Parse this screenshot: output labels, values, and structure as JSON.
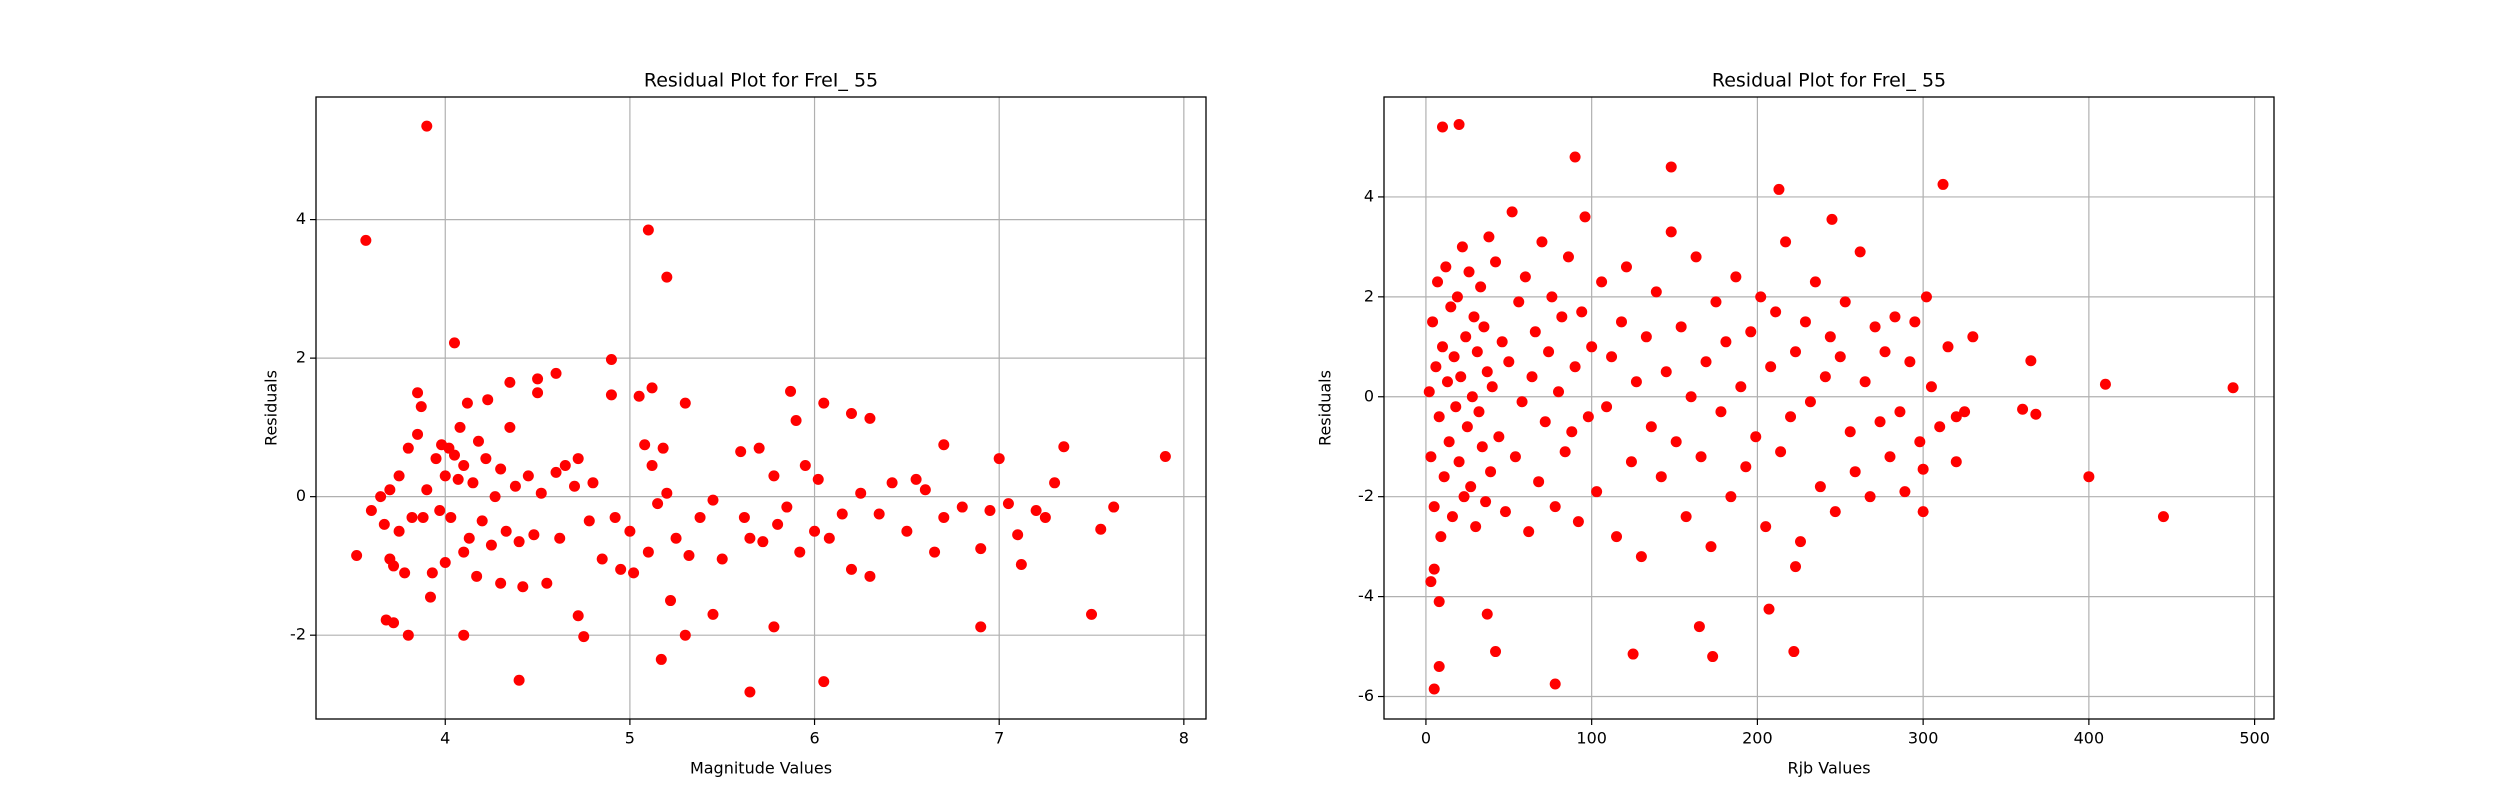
{
  "chart_data": [
    {
      "type": "scatter",
      "title": "Residual Plot for FreI_ 55",
      "x_label": "Magnitude Values",
      "y_label": "Residuals",
      "color": "#ff0000",
      "grid": true,
      "xlim": [
        3.3,
        8.12
      ],
      "ylim": [
        -3.21,
        5.77
      ],
      "xticks": [
        4,
        5,
        6,
        7,
        8
      ],
      "yticks": [
        -2,
        0,
        2,
        4
      ],
      "x": [
        3.52,
        3.57,
        3.9,
        4.05,
        5.1,
        5.2,
        4.9,
        3.8,
        4.1,
        4.4,
        5.65,
        6.05,
        5.17,
        7.9,
        7.5,
        6.9,
        7.35,
        7.55,
        7.62,
        7.12,
        7.0,
        4.72,
        4.75,
        5.45,
        5.3,
        5.78,
        3.68,
        3.72,
        3.85,
        4.6,
        4.5,
        4.35,
        5.12,
        5.87,
        6.05,
        6.2,
        6.3,
        6.7,
        3.6,
        3.65,
        3.67,
        3.7,
        3.7,
        3.72,
        3.75,
        3.75,
        3.78,
        3.8,
        3.82,
        3.85,
        3.87,
        3.88,
        3.9,
        3.92,
        3.93,
        3.95,
        3.97,
        3.98,
        4.0,
        4.0,
        4.02,
        4.03,
        4.05,
        4.07,
        4.08,
        4.1,
        4.1,
        4.12,
        4.13,
        4.15,
        4.17,
        4.18,
        4.2,
        4.22,
        4.23,
        4.25,
        4.27,
        4.3,
        4.3,
        4.33,
        4.35,
        4.38,
        4.4,
        4.42,
        4.45,
        4.48,
        4.5,
        4.52,
        4.55,
        4.6,
        4.62,
        4.65,
        4.7,
        4.72,
        4.78,
        4.8,
        4.85,
        4.9,
        4.92,
        4.95,
        5.0,
        5.02,
        5.05,
        5.08,
        5.1,
        5.12,
        5.15,
        5.18,
        5.2,
        5.22,
        5.25,
        5.3,
        5.32,
        5.38,
        5.45,
        5.5,
        5.6,
        5.62,
        5.65,
        5.7,
        5.72,
        5.78,
        5.8,
        5.85,
        5.9,
        5.92,
        5.95,
        6.0,
        6.02,
        6.08,
        6.15,
        6.2,
        6.25,
        6.3,
        6.35,
        6.42,
        6.5,
        6.55,
        6.6,
        6.65,
        6.7,
        6.8,
        6.9,
        6.95,
        7.05,
        7.1,
        7.2,
        7.25,
        7.3
      ],
      "values": [
        -0.85,
        3.7,
        5.35,
        2.22,
        3.85,
        3.17,
        1.98,
        -2.0,
        -2.0,
        -2.65,
        -2.82,
        -2.67,
        -2.35,
        0.58,
        -1.7,
        -1.88,
        0.72,
        -0.47,
        -0.15,
        -0.98,
        0.55,
        -1.72,
        -2.02,
        -1.7,
        -2.0,
        -1.88,
        -1.78,
        -1.82,
        1.5,
        1.78,
        1.7,
        1.65,
        1.57,
        1.52,
        1.35,
        1.2,
        1.13,
        0.75,
        -0.2,
        0.0,
        -0.4,
        0.1,
        -0.9,
        -1.0,
        -0.5,
        0.3,
        -1.1,
        0.7,
        -0.3,
        0.9,
        1.3,
        -0.3,
        0.1,
        -1.45,
        -1.1,
        0.55,
        -0.2,
        0.75,
        0.3,
        -0.95,
        0.7,
        -0.3,
        0.6,
        0.25,
        1.0,
        -0.8,
        0.45,
        1.35,
        -0.6,
        0.2,
        -1.15,
        0.8,
        -0.35,
        0.55,
        1.4,
        -0.7,
        0.0,
        -1.25,
        0.4,
        -0.5,
        1.0,
        0.15,
        -0.65,
        -1.3,
        0.3,
        -0.55,
        1.5,
        0.05,
        -1.25,
        0.35,
        -0.6,
        0.45,
        0.15,
        0.55,
        -0.35,
        0.2,
        -0.9,
        1.47,
        -0.3,
        -1.05,
        -0.5,
        -1.1,
        1.45,
        0.75,
        -0.8,
        0.45,
        -0.1,
        0.7,
        0.05,
        -1.5,
        -0.6,
        1.35,
        -0.85,
        -0.3,
        -0.05,
        -0.9,
        0.65,
        -0.3,
        -0.6,
        0.7,
        -0.65,
        0.3,
        -0.4,
        -0.15,
        1.1,
        -0.8,
        0.45,
        -0.5,
        0.25,
        -0.6,
        -0.25,
        -1.05,
        0.05,
        -1.15,
        -0.25,
        0.2,
        -0.5,
        0.25,
        0.1,
        -0.8,
        -0.3,
        -0.15,
        -0.75,
        -0.2,
        -0.1,
        -0.55,
        -0.2,
        -0.3,
        0.2
      ]
    },
    {
      "type": "scatter",
      "title": "Residual Plot for FreI_ 55",
      "x_label": "Rjb Values",
      "y_label": "Residuals",
      "color": "#ff0000",
      "grid": true,
      "xlim": [
        -25.3,
        511.7
      ],
      "ylim": [
        -6.45,
        6.0
      ],
      "xticks": [
        0,
        100,
        200,
        300,
        400,
        500
      ],
      "yticks": [
        -6,
        -4,
        -2,
        0,
        2,
        4
      ],
      "x": [
        10,
        20,
        90,
        148,
        312,
        213,
        245,
        487,
        410,
        400,
        445,
        365,
        368,
        360,
        5,
        8,
        78,
        125,
        173,
        222,
        42,
        207,
        165,
        37,
        8,
        3,
        5,
        223,
        330,
        325,
        320,
        300,
        302,
        300,
        2,
        3,
        4,
        5,
        6,
        7,
        8,
        9,
        10,
        11,
        12,
        13,
        14,
        15,
        16,
        17,
        18,
        19,
        20,
        21,
        22,
        23,
        24,
        25,
        26,
        27,
        28,
        29,
        30,
        31,
        32,
        33,
        34,
        35,
        36,
        37,
        38,
        39,
        40,
        42,
        44,
        46,
        48,
        50,
        52,
        54,
        56,
        58,
        60,
        62,
        64,
        66,
        68,
        70,
        72,
        74,
        76,
        78,
        80,
        82,
        84,
        86,
        88,
        90,
        92,
        94,
        96,
        98,
        100,
        103,
        106,
        109,
        112,
        115,
        118,
        121,
        124,
        127,
        130,
        133,
        136,
        139,
        142,
        145,
        148,
        151,
        154,
        157,
        160,
        163,
        166,
        169,
        172,
        175,
        178,
        181,
        184,
        187,
        190,
        193,
        196,
        199,
        202,
        205,
        208,
        211,
        214,
        217,
        220,
        223,
        226,
        229,
        232,
        235,
        238,
        241,
        244,
        247,
        250,
        253,
        256,
        259,
        262,
        265,
        268,
        271,
        274,
        277,
        280,
        283,
        286,
        289,
        292,
        295,
        298,
        305,
        310,
        315,
        320
      ],
      "values": [
        5.4,
        5.45,
        4.8,
        4.6,
        4.25,
        4.15,
        3.55,
        0.18,
        0.25,
        -1.6,
        -2.4,
        0.72,
        -0.35,
        -0.25,
        -5.85,
        -5.4,
        -5.75,
        -5.15,
        -5.2,
        -5.1,
        -5.1,
        -4.25,
        -4.6,
        -4.35,
        -4.1,
        -3.7,
        -3.45,
        -3.4,
        1.2,
        -0.3,
        -1.3,
        -2.3,
        2.0,
        -1.45,
        0.1,
        -1.2,
        1.5,
        -2.2,
        0.6,
        2.3,
        -0.4,
        -2.8,
        1.0,
        -1.6,
        2.6,
        0.3,
        -0.9,
        1.8,
        -2.4,
        0.8,
        -0.2,
        2.0,
        -1.3,
        0.4,
        3.0,
        -2.0,
        1.2,
        -0.6,
        2.5,
        -1.8,
        0.0,
        1.6,
        -2.6,
        0.9,
        -0.3,
        2.2,
        -1.0,
        1.4,
        -2.1,
        0.5,
        3.2,
        -1.5,
        0.2,
        2.7,
        -0.8,
        1.1,
        -2.3,
        0.7,
        3.7,
        -1.2,
        1.9,
        -0.1,
        2.4,
        -2.7,
        0.4,
        1.3,
        -1.7,
        3.1,
        -0.5,
        0.9,
        2.0,
        -2.2,
        0.1,
        1.6,
        -1.1,
        2.8,
        -0.7,
        0.6,
        -2.5,
        1.7,
        3.6,
        -0.4,
        1.0,
        -1.9,
        2.3,
        -0.2,
        0.8,
        -2.8,
        1.5,
        2.6,
        -1.3,
        0.3,
        -3.2,
        1.2,
        -0.6,
        2.1,
        -1.6,
        0.5,
        3.3,
        -0.9,
        1.4,
        -2.4,
        0.0,
        2.8,
        -1.2,
        0.7,
        -3.0,
        1.9,
        -0.3,
        1.1,
        -2.0,
        2.4,
        0.2,
        -1.4,
        1.3,
        -0.8,
        2.0,
        -2.6,
        0.6,
        1.7,
        -1.1,
        3.1,
        -0.4,
        0.9,
        -2.9,
        1.5,
        -0.1,
        2.3,
        -1.8,
        0.4,
        1.2,
        -2.3,
        0.8,
        1.9,
        -0.7,
        -1.5,
        2.9,
        0.3,
        -2.0,
        1.4,
        -0.5,
        0.9,
        -1.2,
        1.6,
        -0.3,
        -1.9,
        0.7,
        1.5,
        -0.9,
        0.2,
        -0.6,
        1.0,
        -0.4
      ]
    }
  ]
}
